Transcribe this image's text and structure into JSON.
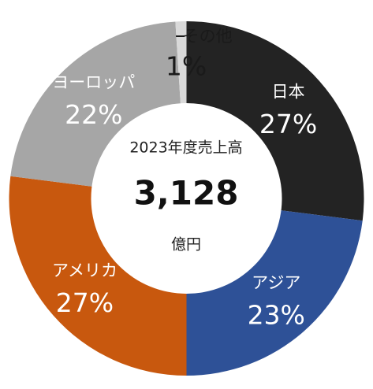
{
  "chart_data": {
    "type": "pie",
    "title": "2023年度売上高",
    "center_value": "3,128",
    "center_unit": "億円",
    "slices": [
      {
        "label": "日本",
        "value": 27,
        "value_label": "27%",
        "color": "#232323"
      },
      {
        "label": "アジア",
        "value": 23,
        "value_label": "23%",
        "color": "#2e5197"
      },
      {
        "label": "アメリカ",
        "value": 27,
        "value_label": "27%",
        "color": "#c8580e"
      },
      {
        "label": "ヨーロッパ",
        "value": 22,
        "value_label": "22%",
        "color": "#a6a6a6"
      },
      {
        "label": "その他",
        "value": 1,
        "value_label": "1%",
        "color": "#d9d9d9"
      }
    ]
  }
}
